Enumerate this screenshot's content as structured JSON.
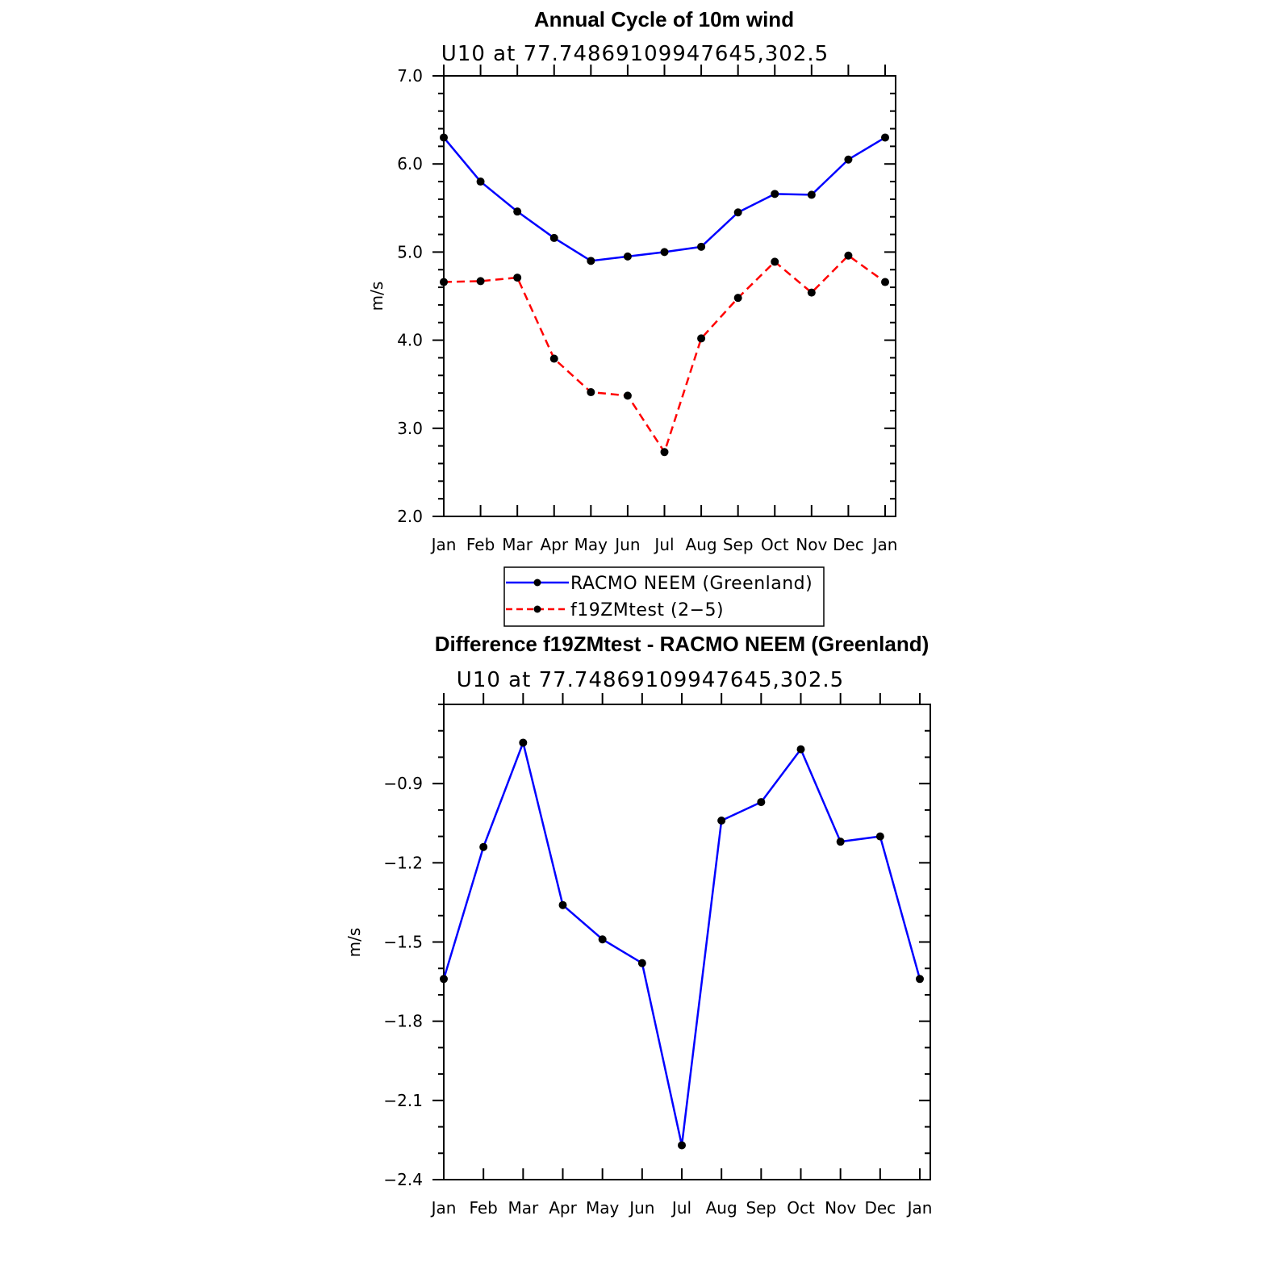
{
  "chart_data": [
    {
      "type": "line",
      "title": "Annual Cycle of 10m wind",
      "subtitle": "U10  at  77.74869109947645,302.5",
      "xlabel": "",
      "ylabel": "m/s",
      "categories": [
        "Jan",
        "Feb",
        "Mar",
        "Apr",
        "May",
        "Jun",
        "Jul",
        "Aug",
        "Sep",
        "Oct",
        "Nov",
        "Dec",
        "Jan"
      ],
      "ylim": [
        2.0,
        7.0
      ],
      "yticks": [
        2.0,
        3.0,
        4.0,
        5.0,
        6.0,
        7.0
      ],
      "ytick_labels": [
        "2.0",
        "3.0",
        "4.0",
        "5.0",
        "6.0",
        "7.0"
      ],
      "series": [
        {
          "name": "RACMO NEEM (Greenland)",
          "color": "#0000ff",
          "dash": "solid",
          "values": [
            6.3,
            5.8,
            5.46,
            5.16,
            4.9,
            4.95,
            5.0,
            5.06,
            5.45,
            5.66,
            5.65,
            6.05,
            6.3
          ]
        },
        {
          "name": "f19ZMtest (2−5)",
          "color": "#ff0000",
          "dash": "dashed",
          "values": [
            4.66,
            4.67,
            4.71,
            3.79,
            3.41,
            3.37,
            2.73,
            4.02,
            4.48,
            4.89,
            4.54,
            4.96,
            4.66
          ]
        }
      ],
      "legend": "below"
    },
    {
      "type": "line",
      "title": "Difference f19ZMtest - RACMO NEEM (Greenland)",
      "subtitle": "U10  at  77.74869109947645,302.5",
      "xlabel": "",
      "ylabel": "m/s",
      "categories": [
        "Jan",
        "Feb",
        "Mar",
        "Apr",
        "May",
        "Jun",
        "Jul",
        "Aug",
        "Sep",
        "Oct",
        "Nov",
        "Dec",
        "Jan"
      ],
      "ylim": [
        -2.4,
        -0.6
      ],
      "yticks": [
        -2.4,
        -2.1,
        -1.8,
        -1.5,
        -1.2,
        -0.9
      ],
      "ytick_labels": [
        "−2.4",
        "−2.1",
        "−1.8",
        "−1.5",
        "−1.2",
        "−0.9"
      ],
      "series": [
        {
          "name": "Difference",
          "color": "#0000ff",
          "dash": "solid",
          "values": [
            -1.64,
            -1.14,
            -0.745,
            -1.36,
            -1.49,
            -1.58,
            -2.27,
            -1.04,
            -0.97,
            -0.77,
            -1.12,
            -1.1,
            -1.64
          ]
        }
      ]
    }
  ]
}
